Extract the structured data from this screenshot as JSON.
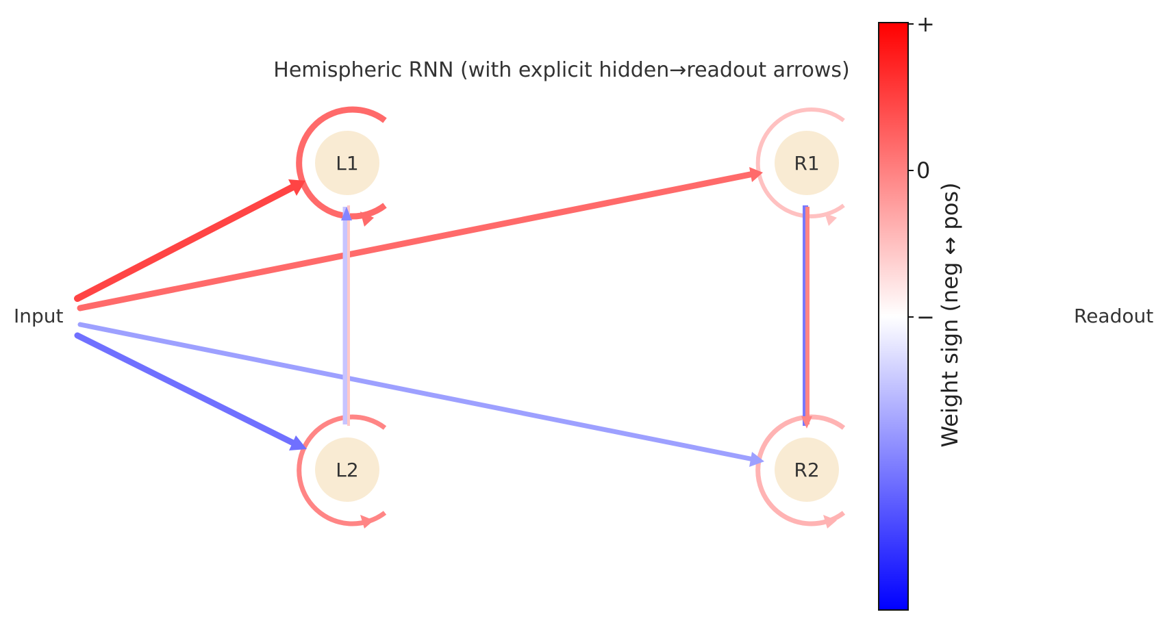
{
  "title": "Hemispheric RNN (with explicit hidden→readout arrows)",
  "input_label": "Input",
  "readout_label": "Readout",
  "nodes": [
    {
      "id": "L1",
      "label": "L1"
    },
    {
      "id": "L2",
      "label": "L2"
    },
    {
      "id": "R1",
      "label": "R1"
    },
    {
      "id": "R2",
      "label": "R2"
    }
  ],
  "colors": {
    "node_fill": "#f9ebd3",
    "strong_pos": "#ff4444",
    "pos": "#ff6a6a",
    "mid_pos": "#ff8585",
    "light_pos": "#ffb3b3",
    "pale_pos": "#ffc8c8",
    "neg": "#7070ff",
    "light_neg": "#9da0ff",
    "pale_neg": "#c8c4ff"
  },
  "colorbar": {
    "label": "Weight sign (neg ↔ pos)",
    "ticks": [
      "+",
      "0",
      "−"
    ],
    "colors": [
      "#ff0000",
      "#ffffff",
      "#0000ff"
    ]
  }
}
